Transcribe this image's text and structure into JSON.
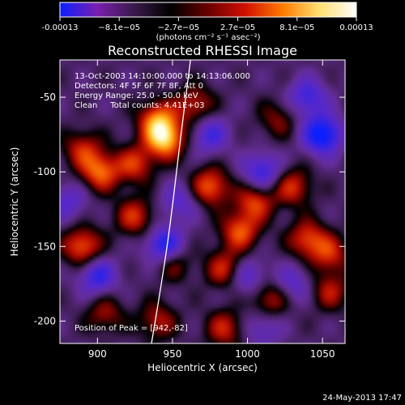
{
  "chart_data": {
    "type": "heatmap",
    "title": "Reconstructed RHESSI Image",
    "xlabel": "Heliocentric X (arcsec)",
    "ylabel": "Heliocentric Y (arcsec)",
    "x_ticks": [
      "900",
      "950",
      "1000",
      "1050"
    ],
    "y_ticks": [
      "-50",
      "-100",
      "-150",
      "-200"
    ],
    "xlim": [
      875,
      1065
    ],
    "ylim": [
      -215,
      -25
    ],
    "colorbar": {
      "ticks": [
        "-0.00013",
        "−8.1e−05",
        "−2.7e−05",
        "2.7e−05",
        "8.1e−05",
        "0.00013"
      ],
      "label": "(photons cm⁻² s⁻¹ asec⁻²)",
      "range": [
        -0.00013,
        0.00013
      ],
      "colors": [
        "#0b1fff",
        "#7a1fb0",
        "#3a1a4a",
        "#000000",
        "#6a0000",
        "#d01000",
        "#ff7a00",
        "#ffe070",
        "#ffffff"
      ]
    },
    "annotations": [
      "13-Oct-2003 14:10:00.000 to 14:13:06.000",
      "Detectors: 4F 5F 6F 7F 8F, Att 0",
      "Energy Range: 25.0 - 50.0 keV",
      "Clean     Total counts: 4.41E+03"
    ],
    "peak_label": "Position of Peak = [942,-82]",
    "peak": [
      942,
      -82
    ],
    "sources": [
      {
        "x": 945,
        "y": -78,
        "s": 0.95
      },
      {
        "x": 940,
        "y": -65,
        "s": 0.7
      },
      {
        "x": 925,
        "y": -95,
        "s": 0.55
      },
      {
        "x": 902,
        "y": -100,
        "s": 0.7
      },
      {
        "x": 890,
        "y": -85,
        "s": 0.5
      },
      {
        "x": 890,
        "y": -150,
        "s": 0.7
      },
      {
        "x": 925,
        "y": -130,
        "s": 0.55
      },
      {
        "x": 965,
        "y": -55,
        "s": 0.5
      },
      {
        "x": 975,
        "y": -110,
        "s": 0.7
      },
      {
        "x": 995,
        "y": -140,
        "s": 0.65
      },
      {
        "x": 985,
        "y": -165,
        "s": 0.55
      },
      {
        "x": 1005,
        "y": -120,
        "s": 0.6
      },
      {
        "x": 1030,
        "y": -110,
        "s": 0.55
      },
      {
        "x": 1040,
        "y": -145,
        "s": 0.6
      },
      {
        "x": 1055,
        "y": -155,
        "s": 0.5
      },
      {
        "x": 1055,
        "y": -180,
        "s": 0.45
      },
      {
        "x": 1015,
        "y": -185,
        "s": 0.5
      },
      {
        "x": 950,
        "y": -160,
        "s": 0.45
      },
      {
        "x": 985,
        "y": -205,
        "s": 0.5
      },
      {
        "x": 940,
        "y": -200,
        "s": 0.45
      },
      {
        "x": 1020,
        "y": -65,
        "s": 0.35
      },
      {
        "x": 905,
        "y": -195,
        "s": 0.4
      }
    ],
    "sinks": [
      {
        "x": 945,
        "y": -150,
        "s": 0.8
      },
      {
        "x": 1050,
        "y": -75,
        "s": 0.9
      },
      {
        "x": 1010,
        "y": -100,
        "s": 0.6
      },
      {
        "x": 900,
        "y": -170,
        "s": 0.6
      },
      {
        "x": 1040,
        "y": -50,
        "s": 0.55
      },
      {
        "x": 975,
        "y": -75,
        "s": 0.5
      },
      {
        "x": 1000,
        "y": -170,
        "s": 0.45
      },
      {
        "x": 955,
        "y": -120,
        "s": 0.4
      },
      {
        "x": 1030,
        "y": -175,
        "s": 0.4
      },
      {
        "x": 880,
        "y": -120,
        "s": 0.4
      },
      {
        "x": 1010,
        "y": -205,
        "s": 0.35
      }
    ],
    "limb_curve": [
      [
        962,
        -25
      ],
      [
        955,
        -80
      ],
      [
        948,
        -140
      ],
      [
        941,
        -185
      ],
      [
        936,
        -215
      ]
    ]
  },
  "footer": {
    "timestamp": "24-May-2013 17:47"
  }
}
